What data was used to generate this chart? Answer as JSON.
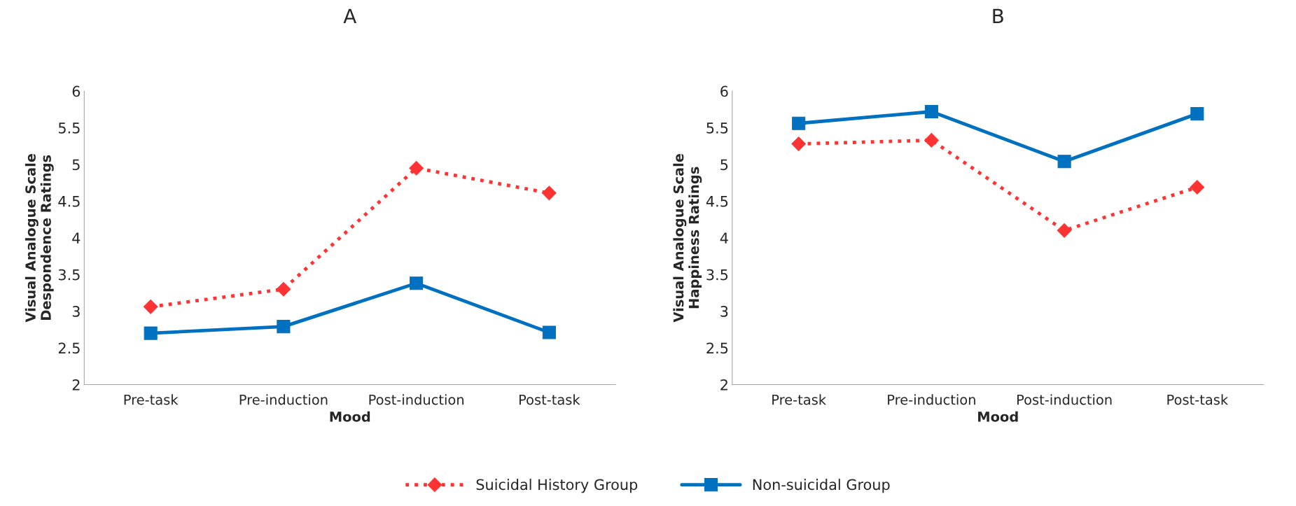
{
  "chart_data": [
    {
      "type": "line",
      "title": "A",
      "xlabel": "Mood",
      "ylabel": "Visual Analogue Scale\nDespondence Ratings",
      "categories": [
        "Pre-task",
        "Pre-induction",
        "Post-induction",
        "Post-task"
      ],
      "ylim": [
        2,
        6
      ],
      "yticks": [
        2,
        2.5,
        3,
        3.5,
        4,
        4.5,
        5,
        5.5,
        6
      ],
      "grid": false,
      "legend": "bottom",
      "series": [
        {
          "name": "Suicidal History Group",
          "color": "#ff3333",
          "marker": "diamond",
          "line_style": "dotted",
          "values": [
            3.06,
            3.3,
            4.95,
            4.61
          ]
        },
        {
          "name": "Non-suicidal Group",
          "color": "#0070c0",
          "marker": "square",
          "line_style": "solid",
          "values": [
            2.7,
            2.79,
            3.38,
            2.71
          ]
        }
      ]
    },
    {
      "type": "line",
      "title": "B",
      "xlabel": "Mood",
      "ylabel": "Visual Analogue Scale\nHappiness Ratings",
      "categories": [
        "Pre-task",
        "Pre-induction",
        "Post-induction",
        "Post-task"
      ],
      "ylim": [
        2,
        6
      ],
      "yticks": [
        2,
        2.5,
        3,
        3.5,
        4,
        4.5,
        5,
        5.5,
        6
      ],
      "grid": false,
      "series": [
        {
          "name": "Suicidal History Group",
          "color": "#ff3333",
          "marker": "diamond",
          "line_style": "dotted",
          "values": [
            5.28,
            5.33,
            4.1,
            4.69
          ]
        },
        {
          "name": "Non-suicidal Group",
          "color": "#0070c0",
          "marker": "square",
          "line_style": "solid",
          "values": [
            5.56,
            5.72,
            5.04,
            5.69
          ]
        }
      ]
    }
  ]
}
